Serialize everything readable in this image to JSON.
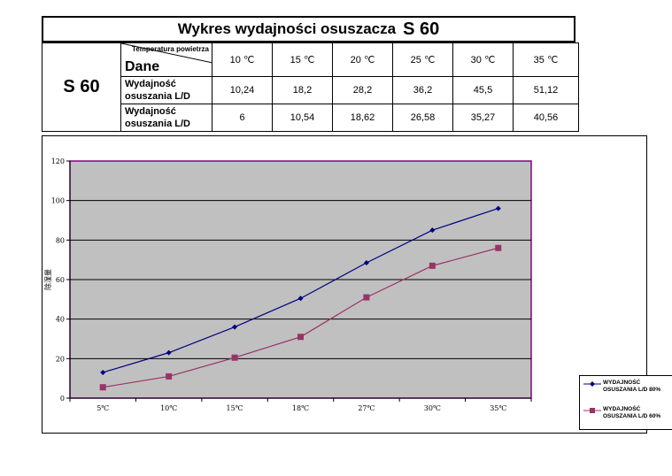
{
  "title": {
    "text": "Wykres wydajności osuszacza",
    "model": "S 60"
  },
  "table": {
    "model": "S 60",
    "header_top": "Temperatura powietrza",
    "header_left": "Dane",
    "temps": [
      "10 ℃",
      "15 ℃",
      "20 ℃",
      "25 ℃",
      "30 ℃",
      "35 ℃"
    ],
    "rows": [
      {
        "label": "Wydajność osuszania L/D",
        "values": [
          "10,24",
          "18,2",
          "28,2",
          "36,2",
          "45,5",
          "51,12"
        ]
      },
      {
        "label": "Wydajność osuszania L/D",
        "values": [
          "6",
          "10,54",
          "18,62",
          "26,58",
          "35,27",
          "40,56"
        ]
      }
    ]
  },
  "chart_data": {
    "type": "line",
    "title": "",
    "xlabel": "",
    "ylabel": "除湿量",
    "categories": [
      "5℃",
      "10℃",
      "15℃",
      "18℃",
      "27℃",
      "30℃",
      "35℃"
    ],
    "ylim": [
      0,
      120
    ],
    "yticks": [
      0,
      20,
      40,
      60,
      80,
      100,
      120
    ],
    "grid": true,
    "legend_position": "right",
    "plot_background": "#c0c0c0",
    "series": [
      {
        "name": "WYDAJNOŚĆ OSUSZANIA L/D 80%",
        "color": "#000080",
        "marker": "diamond",
        "values": [
          13,
          23,
          36,
          50.5,
          68.5,
          85,
          96
        ]
      },
      {
        "name": "WYDAJNOŚĆ OSUSZANIA L/D 60%",
        "color": "#993366",
        "marker": "square",
        "values": [
          5.5,
          11,
          20.5,
          31,
          51,
          67,
          76
        ]
      }
    ]
  }
}
